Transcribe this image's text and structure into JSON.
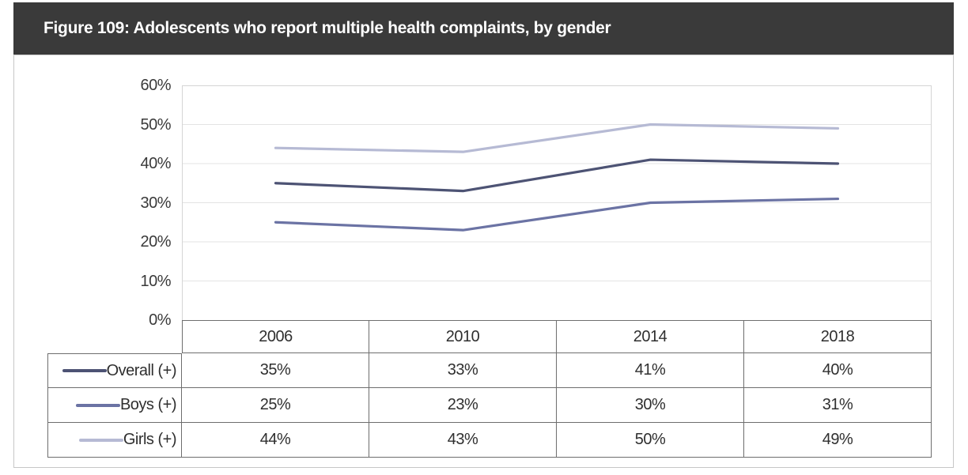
{
  "figure": {
    "title": "Figure 109: Adolescents who report multiple health complaints, by gender",
    "title_bar_color": "#3a3a3a",
    "title_text_color": "#ffffff"
  },
  "chart_data": {
    "type": "line",
    "title": "Figure 109: Adolescents who report multiple health complaints, by gender",
    "categories": [
      "2006",
      "2010",
      "2014",
      "2018"
    ],
    "series": [
      {
        "name": "Overall (+)",
        "values": [
          35,
          33,
          41,
          40
        ],
        "labels": [
          "35%",
          "33%",
          "41%",
          "40%"
        ],
        "color": "#4d5374"
      },
      {
        "name": "Boys (+)",
        "values": [
          25,
          23,
          30,
          31
        ],
        "labels": [
          "25%",
          "23%",
          "30%",
          "31%"
        ],
        "color": "#6b73a4"
      },
      {
        "name": "Girls (+)",
        "values": [
          44,
          43,
          50,
          49
        ],
        "labels": [
          "44%",
          "43%",
          "50%",
          "49%"
        ],
        "color": "#b6bad4"
      }
    ],
    "xlabel": "",
    "ylabel": "",
    "ylim": [
      0,
      60
    ],
    "ytick_step": 10,
    "yticks": [
      "0%",
      "10%",
      "20%",
      "30%",
      "40%",
      "50%",
      "60%"
    ],
    "grid": true,
    "gridline_color": "#e3e3e3",
    "plot_border_color": "#d5d5d5",
    "legend_position": "table-left"
  }
}
